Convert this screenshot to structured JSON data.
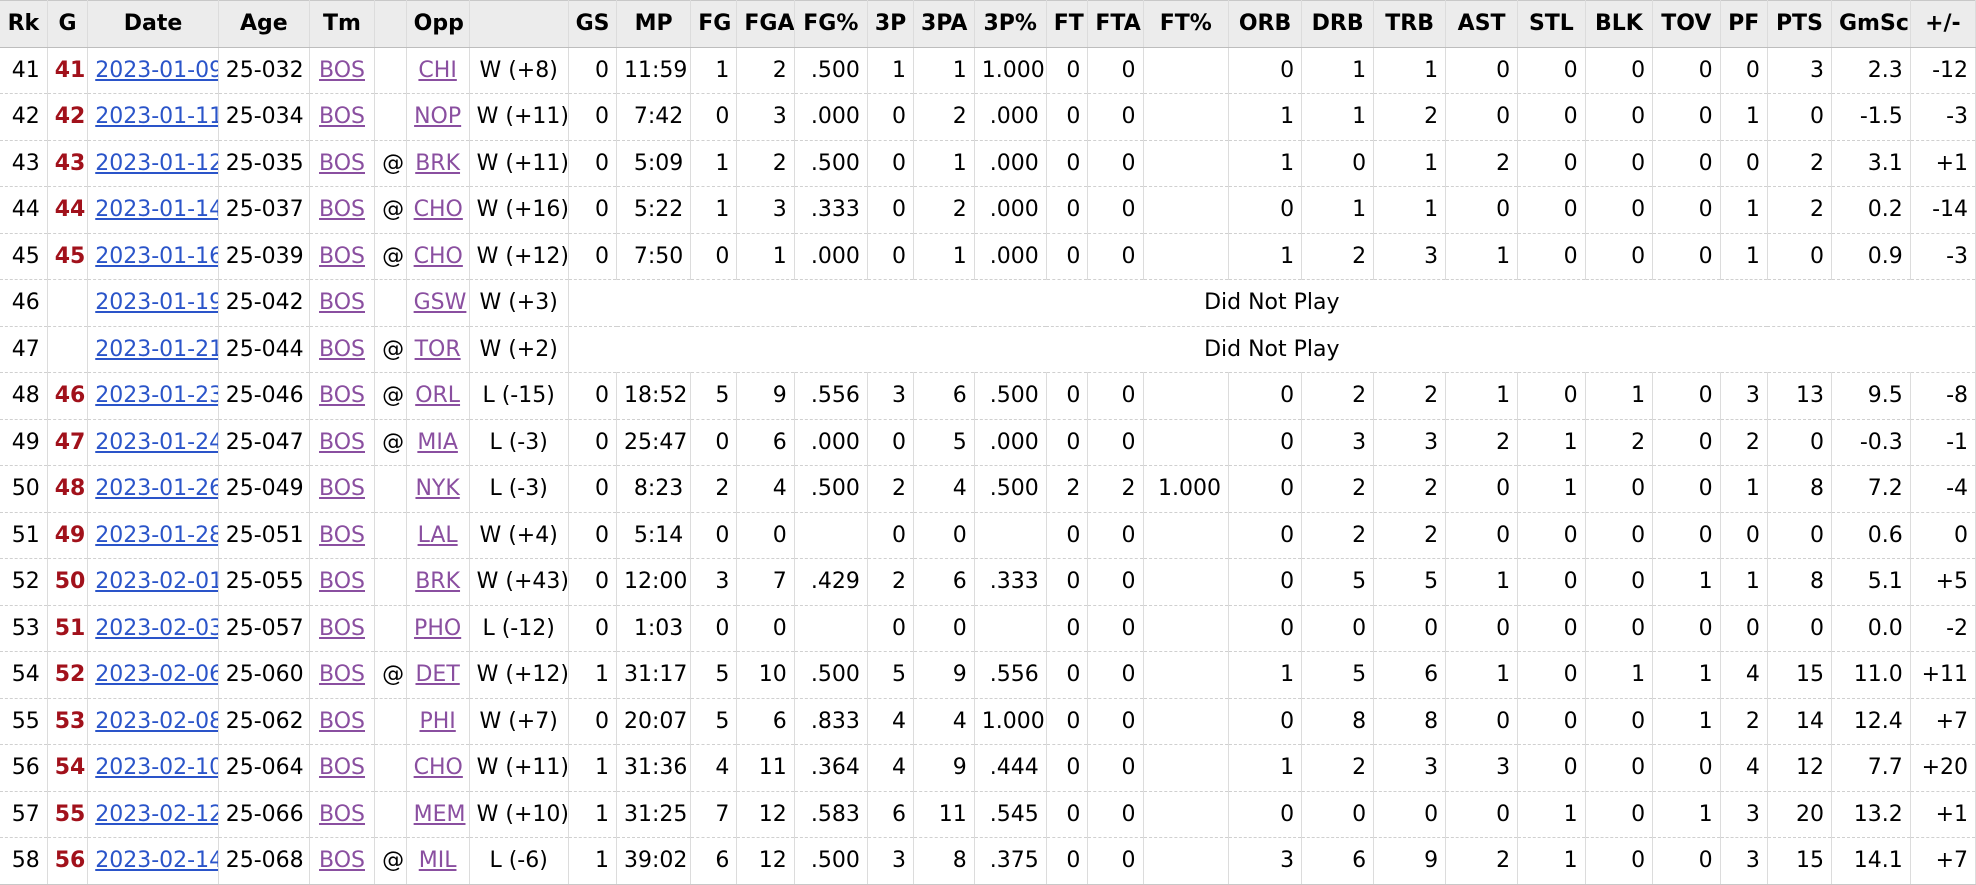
{
  "columns": [
    "Rk",
    "G",
    "Date",
    "Age",
    "Tm",
    "",
    "Opp",
    "",
    "GS",
    "MP",
    "FG",
    "FGA",
    "FG%",
    "3P",
    "3PA",
    "3P%",
    "FT",
    "FTA",
    "FT%",
    "ORB",
    "DRB",
    "TRB",
    "AST",
    "STL",
    "BLK",
    "TOV",
    "PF",
    "PTS",
    "GmSc",
    "+/-"
  ],
  "rows": [
    {
      "rk": "41",
      "g": "41",
      "date": "2023-01-09",
      "age": "25-032",
      "tm": "BOS",
      "at": "",
      "opp": "CHI",
      "res": "W (+8)",
      "stats": [
        "0",
        "11:59",
        "1",
        "2",
        ".500",
        "1",
        "1",
        "1.000",
        "0",
        "0",
        "",
        "0",
        "1",
        "1",
        "0",
        "0",
        "0",
        "0",
        "0",
        "3",
        "2.3",
        "-12"
      ]
    },
    {
      "rk": "42",
      "g": "42",
      "date": "2023-01-11",
      "age": "25-034",
      "tm": "BOS",
      "at": "",
      "opp": "NOP",
      "res": "W (+11)",
      "stats": [
        "0",
        "7:42",
        "0",
        "3",
        ".000",
        "0",
        "2",
        ".000",
        "0",
        "0",
        "",
        "1",
        "1",
        "2",
        "0",
        "0",
        "0",
        "0",
        "1",
        "0",
        "-1.5",
        "-3"
      ]
    },
    {
      "rk": "43",
      "g": "43",
      "date": "2023-01-12",
      "age": "25-035",
      "tm": "BOS",
      "at": "@",
      "opp": "BRK",
      "res": "W (+11)",
      "stats": [
        "0",
        "5:09",
        "1",
        "2",
        ".500",
        "0",
        "1",
        ".000",
        "0",
        "0",
        "",
        "1",
        "0",
        "1",
        "2",
        "0",
        "0",
        "0",
        "0",
        "2",
        "3.1",
        "+1"
      ]
    },
    {
      "rk": "44",
      "g": "44",
      "date": "2023-01-14",
      "age": "25-037",
      "tm": "BOS",
      "at": "@",
      "opp": "CHO",
      "res": "W (+16)",
      "stats": [
        "0",
        "5:22",
        "1",
        "3",
        ".333",
        "0",
        "2",
        ".000",
        "0",
        "0",
        "",
        "0",
        "1",
        "1",
        "0",
        "0",
        "0",
        "0",
        "1",
        "2",
        "0.2",
        "-14"
      ]
    },
    {
      "rk": "45",
      "g": "45",
      "date": "2023-01-16",
      "age": "25-039",
      "tm": "BOS",
      "at": "@",
      "opp": "CHO",
      "res": "W (+12)",
      "stats": [
        "0",
        "7:50",
        "0",
        "1",
        ".000",
        "0",
        "1",
        ".000",
        "0",
        "0",
        "",
        "1",
        "2",
        "3",
        "1",
        "0",
        "0",
        "0",
        "1",
        "0",
        "0.9",
        "-3"
      ]
    },
    {
      "rk": "46",
      "g": "",
      "date": "2023-01-19",
      "age": "25-042",
      "tm": "BOS",
      "at": "",
      "opp": "GSW",
      "res": "W (+3)",
      "dnp": "Did Not Play"
    },
    {
      "rk": "47",
      "g": "",
      "date": "2023-01-21",
      "age": "25-044",
      "tm": "BOS",
      "at": "@",
      "opp": "TOR",
      "res": "W (+2)",
      "dnp": "Did Not Play"
    },
    {
      "rk": "48",
      "g": "46",
      "date": "2023-01-23",
      "age": "25-046",
      "tm": "BOS",
      "at": "@",
      "opp": "ORL",
      "res": "L (-15)",
      "stats": [
        "0",
        "18:52",
        "5",
        "9",
        ".556",
        "3",
        "6",
        ".500",
        "0",
        "0",
        "",
        "0",
        "2",
        "2",
        "1",
        "0",
        "1",
        "0",
        "3",
        "13",
        "9.5",
        "-8"
      ]
    },
    {
      "rk": "49",
      "g": "47",
      "date": "2023-01-24",
      "age": "25-047",
      "tm": "BOS",
      "at": "@",
      "opp": "MIA",
      "res": "L (-3)",
      "stats": [
        "0",
        "25:47",
        "0",
        "6",
        ".000",
        "0",
        "5",
        ".000",
        "0",
        "0",
        "",
        "0",
        "3",
        "3",
        "2",
        "1",
        "2",
        "0",
        "2",
        "0",
        "-0.3",
        "-1"
      ]
    },
    {
      "rk": "50",
      "g": "48",
      "date": "2023-01-26",
      "age": "25-049",
      "tm": "BOS",
      "at": "",
      "opp": "NYK",
      "res": "L (-3)",
      "stats": [
        "0",
        "8:23",
        "2",
        "4",
        ".500",
        "2",
        "4",
        ".500",
        "2",
        "2",
        "1.000",
        "0",
        "2",
        "2",
        "0",
        "1",
        "0",
        "0",
        "1",
        "8",
        "7.2",
        "-4"
      ]
    },
    {
      "rk": "51",
      "g": "49",
      "date": "2023-01-28",
      "age": "25-051",
      "tm": "BOS",
      "at": "",
      "opp": "LAL",
      "res": "W (+4)",
      "stats": [
        "0",
        "5:14",
        "0",
        "0",
        "",
        "0",
        "0",
        "",
        "0",
        "0",
        "",
        "0",
        "2",
        "2",
        "0",
        "0",
        "0",
        "0",
        "0",
        "0",
        "0.6",
        "0"
      ]
    },
    {
      "rk": "52",
      "g": "50",
      "date": "2023-02-01",
      "age": "25-055",
      "tm": "BOS",
      "at": "",
      "opp": "BRK",
      "res": "W (+43)",
      "stats": [
        "0",
        "12:00",
        "3",
        "7",
        ".429",
        "2",
        "6",
        ".333",
        "0",
        "0",
        "",
        "0",
        "5",
        "5",
        "1",
        "0",
        "0",
        "1",
        "1",
        "8",
        "5.1",
        "+5"
      ]
    },
    {
      "rk": "53",
      "g": "51",
      "date": "2023-02-03",
      "age": "25-057",
      "tm": "BOS",
      "at": "",
      "opp": "PHO",
      "res": "L (-12)",
      "stats": [
        "0",
        "1:03",
        "0",
        "0",
        "",
        "0",
        "0",
        "",
        "0",
        "0",
        "",
        "0",
        "0",
        "0",
        "0",
        "0",
        "0",
        "0",
        "0",
        "0",
        "0.0",
        "-2"
      ]
    },
    {
      "rk": "54",
      "g": "52",
      "date": "2023-02-06",
      "age": "25-060",
      "tm": "BOS",
      "at": "@",
      "opp": "DET",
      "res": "W (+12)",
      "stats": [
        "1",
        "31:17",
        "5",
        "10",
        ".500",
        "5",
        "9",
        ".556",
        "0",
        "0",
        "",
        "1",
        "5",
        "6",
        "1",
        "0",
        "1",
        "1",
        "4",
        "15",
        "11.0",
        "+11"
      ]
    },
    {
      "rk": "55",
      "g": "53",
      "date": "2023-02-08",
      "age": "25-062",
      "tm": "BOS",
      "at": "",
      "opp": "PHI",
      "res": "W (+7)",
      "stats": [
        "0",
        "20:07",
        "5",
        "6",
        ".833",
        "4",
        "4",
        "1.000",
        "0",
        "0",
        "",
        "0",
        "8",
        "8",
        "0",
        "0",
        "0",
        "1",
        "2",
        "14",
        "12.4",
        "+7"
      ]
    },
    {
      "rk": "56",
      "g": "54",
      "date": "2023-02-10",
      "age": "25-064",
      "tm": "BOS",
      "at": "",
      "opp": "CHO",
      "res": "W (+11)",
      "stats": [
        "1",
        "31:36",
        "4",
        "11",
        ".364",
        "4",
        "9",
        ".444",
        "0",
        "0",
        "",
        "1",
        "2",
        "3",
        "3",
        "0",
        "0",
        "0",
        "4",
        "12",
        "7.7",
        "+20"
      ]
    },
    {
      "rk": "57",
      "g": "55",
      "date": "2023-02-12",
      "age": "25-066",
      "tm": "BOS",
      "at": "",
      "opp": "MEM",
      "res": "W (+10)",
      "stats": [
        "1",
        "31:25",
        "7",
        "12",
        ".583",
        "6",
        "11",
        ".545",
        "0",
        "0",
        "",
        "0",
        "0",
        "0",
        "0",
        "1",
        "0",
        "1",
        "3",
        "20",
        "13.2",
        "+1"
      ]
    },
    {
      "rk": "58",
      "g": "56",
      "date": "2023-02-14",
      "age": "25-068",
      "tm": "BOS",
      "at": "@",
      "opp": "MIL",
      "res": "L (-6)",
      "stats": [
        "1",
        "39:02",
        "6",
        "12",
        ".500",
        "3",
        "8",
        ".375",
        "0",
        "0",
        "",
        "3",
        "6",
        "9",
        "2",
        "1",
        "0",
        "0",
        "3",
        "15",
        "14.1",
        "+7"
      ]
    }
  ]
}
